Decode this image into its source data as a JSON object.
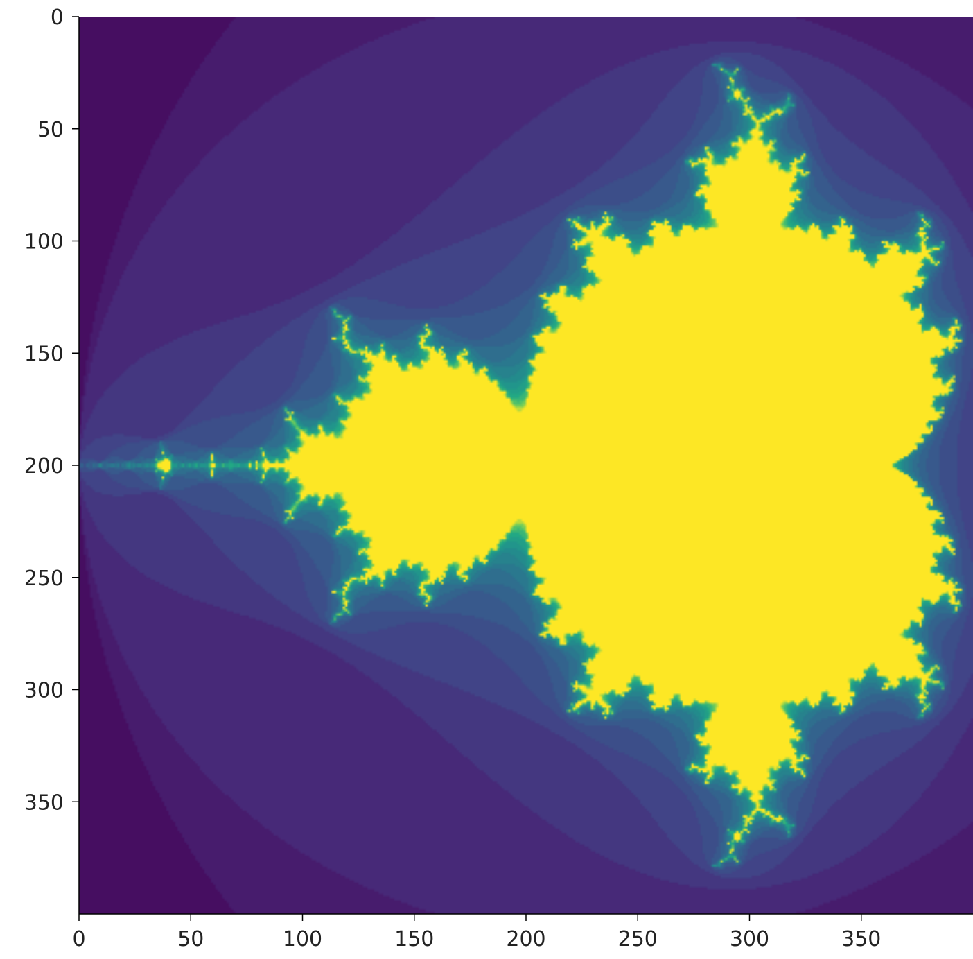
{
  "chart_data": {
    "type": "heatmap",
    "title": "",
    "xlabel": "",
    "ylabel": "",
    "xlim": [
      0,
      400
    ],
    "ylim": [
      400,
      0
    ],
    "y_axis_inverted": true,
    "x_ticks": [
      "0",
      "50",
      "100",
      "150",
      "200",
      "250",
      "300",
      "350"
    ],
    "y_ticks": [
      "0",
      "50",
      "100",
      "150",
      "200",
      "250",
      "300",
      "350"
    ],
    "grid": false,
    "legend": "none",
    "colormap": "viridis",
    "image": {
      "description_value": "Mandelbrot set escape-iteration image",
      "width": 400,
      "height": 400,
      "max_iter": 20,
      "re_range": [
        -2.0,
        0.5
      ],
      "im_range": [
        -1.25,
        1.25
      ]
    },
    "colors": {
      "inside": "#fde725",
      "background": "#440154"
    }
  }
}
